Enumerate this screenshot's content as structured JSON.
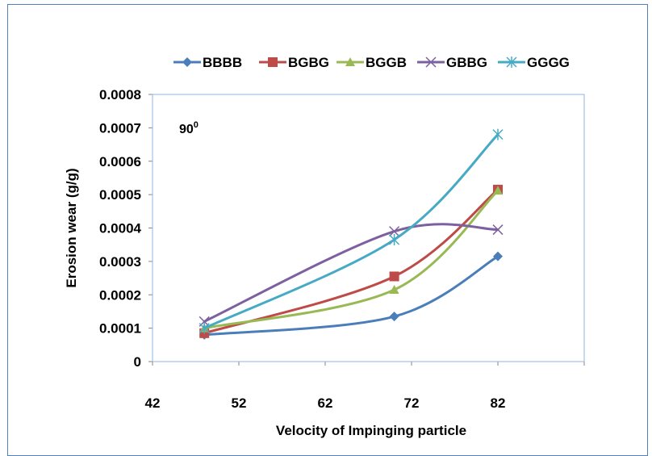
{
  "chart_data": {
    "type": "line",
    "title": "",
    "xlabel": "Velocity of Impinging particle",
    "ylabel": "Erosion wear (g/g)",
    "xlim": [
      42,
      92
    ],
    "ylim": [
      0,
      0.0008
    ],
    "x_ticks": [
      "42",
      "52",
      "62",
      "72",
      "82"
    ],
    "y_ticks": [
      "0",
      "0.0001",
      "0.0002",
      "0.0003",
      "0.0004",
      "0.0005",
      "0.0006",
      "0.0007",
      "0.0008"
    ],
    "annotation": {
      "base": "90",
      "superscript": "0"
    },
    "x": [
      48,
      70,
      82
    ],
    "series": [
      {
        "name": "BBBB",
        "values": [
          8e-05,
          0.000135,
          0.000315
        ],
        "color": "#4a7ebb",
        "marker": "diamond"
      },
      {
        "name": "BGBG",
        "values": [
          8.5e-05,
          0.000255,
          0.000515
        ],
        "color": "#be4b48",
        "marker": "square"
      },
      {
        "name": "BGGB",
        "values": [
          0.0001,
          0.000215,
          0.000512
        ],
        "color": "#98b954",
        "marker": "triangle"
      },
      {
        "name": "GBBG",
        "values": [
          0.00012,
          0.00039,
          0.000395
        ],
        "color": "#7d60a0",
        "marker": "x"
      },
      {
        "name": "GGGG",
        "values": [
          0.0001,
          0.000365,
          0.00068
        ],
        "color": "#46aac5",
        "marker": "star"
      }
    ],
    "grid": false,
    "legend_position": "top"
  }
}
